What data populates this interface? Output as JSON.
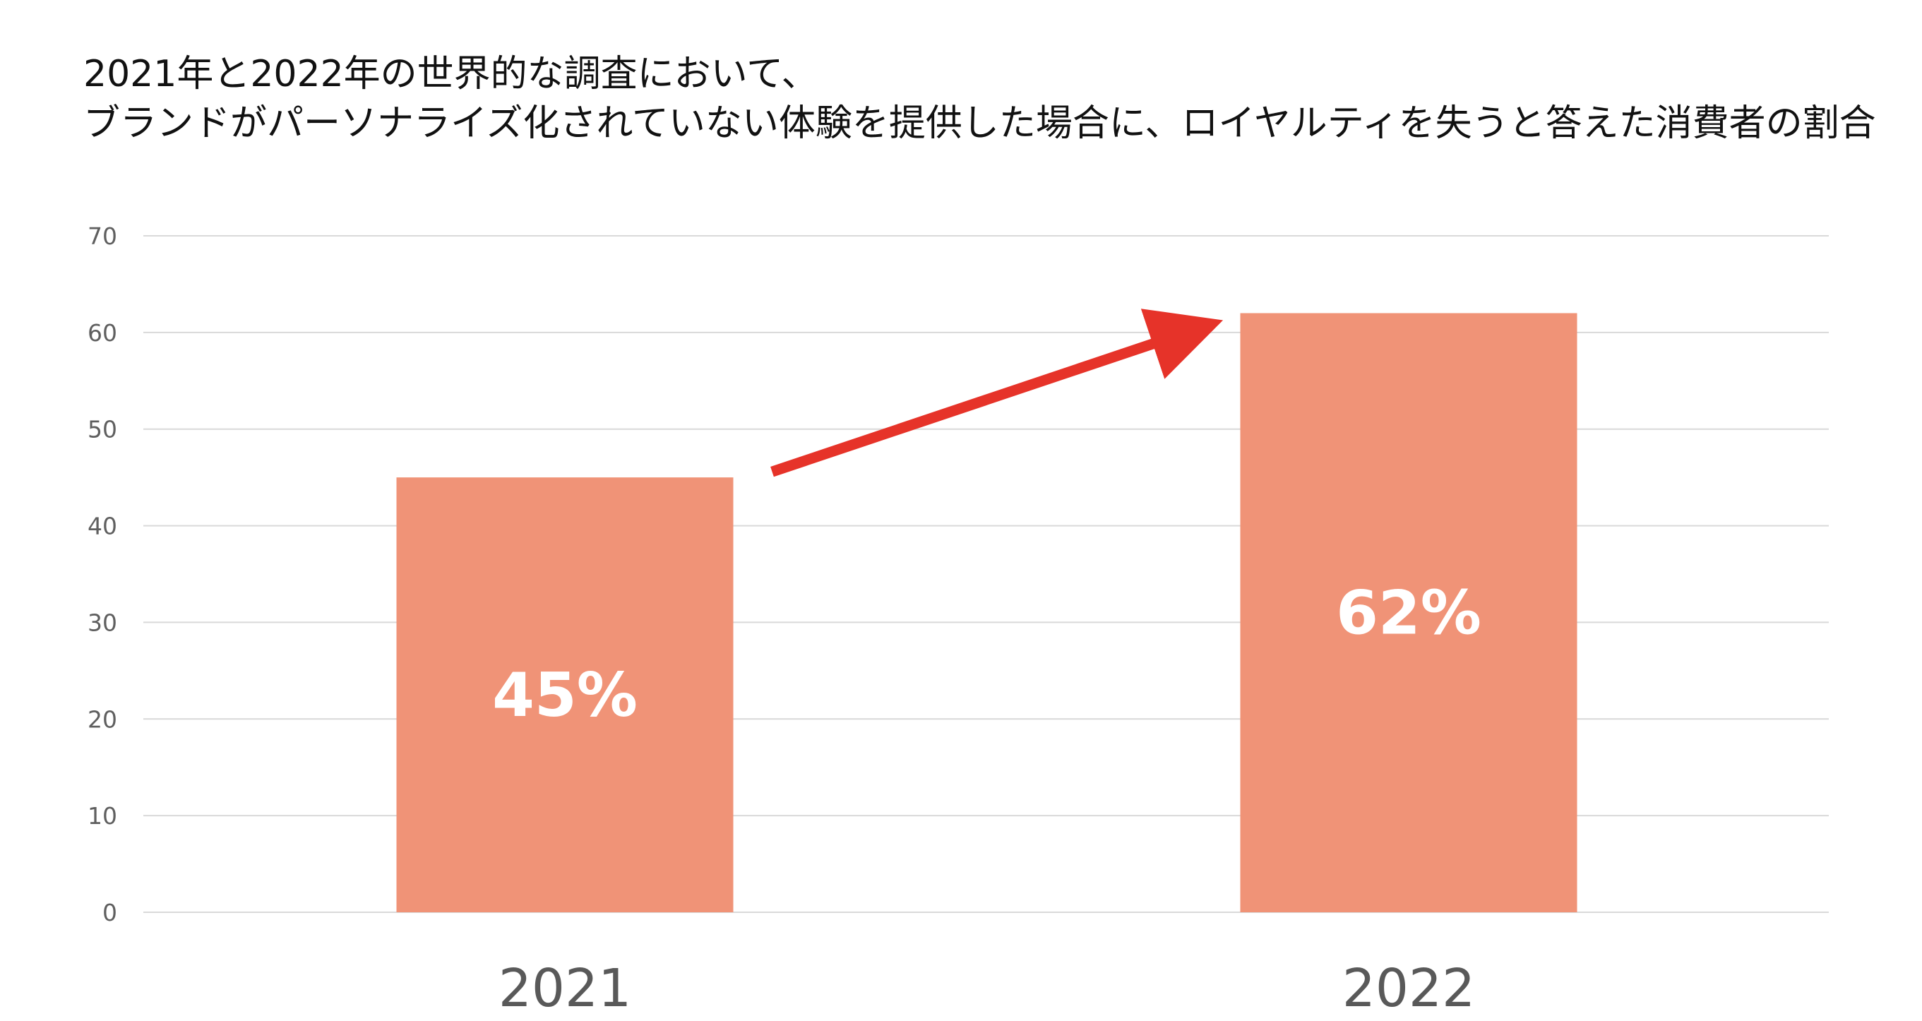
{
  "title": {
    "line1": "2021年と2022年の世界的な調査において、",
    "line2": "ブランドがパーソナライズ化されていない体験を提供した場合に、ロイヤルティを失うと答えた消費者の割合"
  },
  "chart_data": {
    "type": "bar",
    "categories": [
      "2021",
      "2022"
    ],
    "values": [
      45,
      62
    ],
    "data_labels": [
      "45%",
      "62%"
    ],
    "ylim": [
      0,
      70
    ],
    "yticks": [
      0,
      10,
      20,
      30,
      40,
      50,
      60,
      70
    ],
    "xlabel": "",
    "ylabel": "",
    "grid": true,
    "legend": "none",
    "annotation": "increase-arrow",
    "colors": {
      "bar": "#F09377",
      "arrow": "#E63329",
      "grid": "#D9D9D9",
      "tick_text": "#5F5F5F",
      "category_text": "#595959",
      "label_text": "#FFFFFF"
    }
  }
}
